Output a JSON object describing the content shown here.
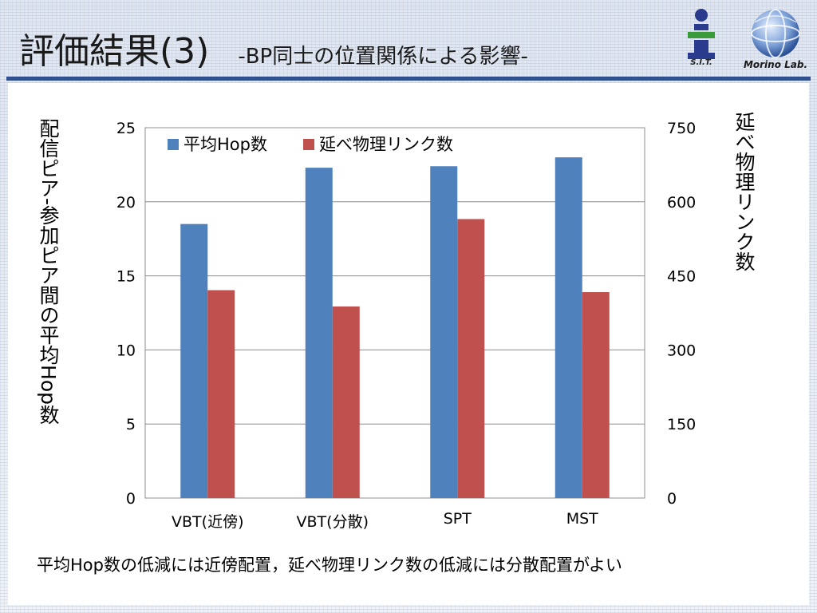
{
  "slide": {
    "title_main": "評価結果(3)",
    "title_sub": "-BP同士の位置関係による影響-",
    "logo_left_label": "S.I.T.",
    "logo_right_label": "Morino Lab.",
    "conclusion": "平均Hop数の低減には近傍配置，延べ物理リンク数の低減には分散配置がよい"
  },
  "colors": {
    "series_hop": "#4f81bd",
    "series_link": "#c0504d",
    "header_rule": "#2f4f8f"
  },
  "chart_data": {
    "type": "bar",
    "categories": [
      "VBT(近傍)",
      "VBT(分散)",
      "SPT",
      "MST"
    ],
    "series": [
      {
        "name": "平均Hop数",
        "axis": "left",
        "values": [
          18.5,
          22.3,
          22.4,
          23.0
        ]
      },
      {
        "name": "延べ物理リンク数",
        "axis": "right",
        "values": [
          421,
          388,
          565,
          417
        ]
      }
    ],
    "y_left": {
      "label": "配信ピア-参加ピア間の平均Hop数",
      "ylim": [
        0,
        25
      ],
      "ticks": [
        "0",
        "5",
        "10",
        "15",
        "20",
        "25"
      ]
    },
    "y_right": {
      "label": "延べ物理リンク数",
      "ylim": [
        0,
        750
      ],
      "ticks": [
        "0",
        "150",
        "300",
        "450",
        "600",
        "750"
      ]
    },
    "legend_position": "top-left",
    "grid": true
  }
}
